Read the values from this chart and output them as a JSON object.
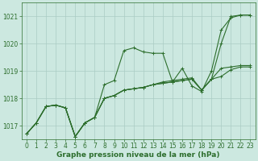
{
  "xlabel": "Graphe pression niveau de la mer (hPa)",
  "ylabel": "",
  "bg_color": "#cce8e0",
  "grid_color": "#aaccC4",
  "line_color": "#2d6e2d",
  "xlim": [
    -0.5,
    23.5
  ],
  "ylim": [
    1016.5,
    1021.5
  ],
  "yticks": [
    1017,
    1018,
    1019,
    1020,
    1021
  ],
  "xticks": [
    0,
    1,
    2,
    3,
    4,
    5,
    6,
    7,
    8,
    9,
    10,
    11,
    12,
    13,
    14,
    15,
    16,
    17,
    18,
    19,
    20,
    21,
    22,
    23
  ],
  "series": [
    [
      1016.7,
      1017.1,
      1017.7,
      1017.75,
      1017.65,
      1016.6,
      1017.1,
      1017.3,
      1018.5,
      1018.65,
      1019.75,
      1019.85,
      1019.7,
      1019.65,
      1019.65,
      1018.6,
      1019.1,
      1018.45,
      1018.25,
      1019.0,
      1020.5,
      1020.95,
      1021.05,
      1021.05
    ],
    [
      1016.7,
      1017.1,
      1017.7,
      1017.75,
      1017.65,
      1016.6,
      1017.1,
      1017.3,
      1018.0,
      1018.1,
      1018.3,
      1018.35,
      1018.4,
      1018.5,
      1018.6,
      1018.65,
      1018.7,
      1018.75,
      1018.3,
      1018.7,
      1018.8,
      1019.05,
      1019.15,
      1019.15
    ],
    [
      1016.7,
      1017.1,
      1017.7,
      1017.75,
      1017.65,
      1016.6,
      1017.1,
      1017.3,
      1018.0,
      1018.1,
      1018.3,
      1018.35,
      1018.4,
      1018.5,
      1018.55,
      1018.6,
      1018.65,
      1018.7,
      1018.3,
      1018.7,
      1019.1,
      1019.15,
      1019.2,
      1019.2
    ],
    [
      1016.7,
      1017.1,
      1017.7,
      1017.75,
      1017.65,
      1016.6,
      1017.1,
      1017.3,
      1018.0,
      1018.1,
      1018.3,
      1018.35,
      1018.4,
      1018.5,
      1018.55,
      1018.6,
      1018.65,
      1018.7,
      1018.3,
      1018.7,
      1020.0,
      1021.0,
      1021.05,
      1021.05
    ]
  ],
  "marker": "+",
  "markersize": 3,
  "linewidth": 0.8,
  "tick_fontsize": 5.5,
  "label_fontsize": 6.5
}
